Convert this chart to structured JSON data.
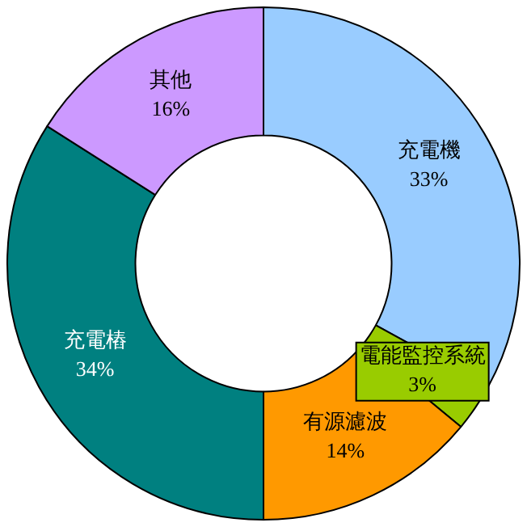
{
  "chart_data": {
    "type": "donut",
    "categories": [
      "充電機",
      "電能監控系統",
      "有源濾波",
      "充電樁",
      "其他"
    ],
    "values": [
      33,
      3,
      14,
      34,
      16
    ],
    "value_labels": [
      "33%",
      "3%",
      "14%",
      "34%",
      "16%"
    ],
    "colors": [
      "#99ccff",
      "#99cc00",
      "#ff9900",
      "#008080",
      "#cc99ff"
    ],
    "legend": false
  }
}
